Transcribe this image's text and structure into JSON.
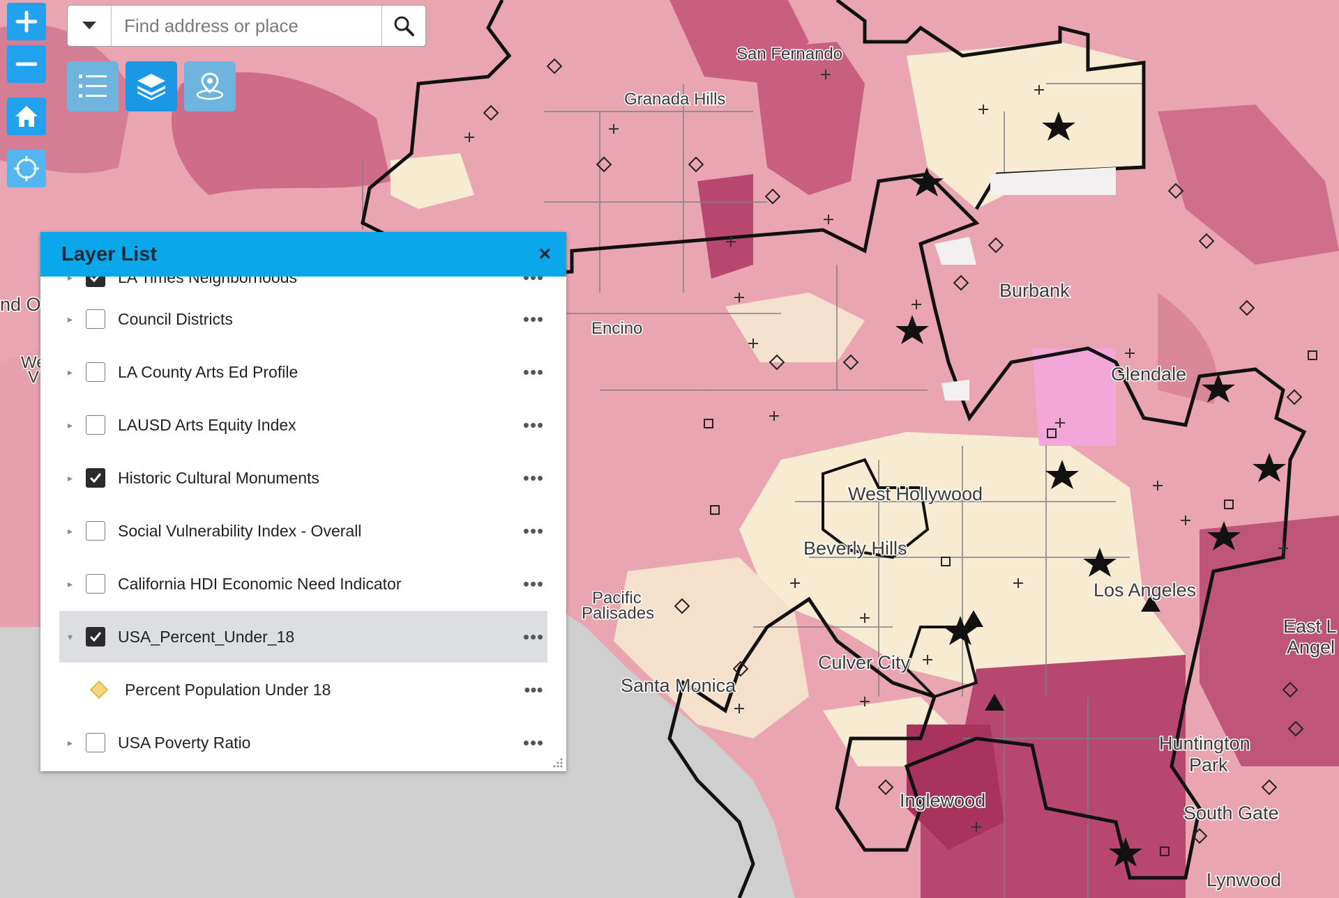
{
  "search": {
    "placeholder": "Find address or place"
  },
  "controls": {
    "zoom_in": "zoom-in",
    "zoom_out": "zoom-out",
    "home": "home",
    "locate": "locate"
  },
  "map": {
    "labels": {
      "san_fernando": "San Fernando",
      "granada_hills": "Granada Hills",
      "burbank": "Burbank",
      "encino": "Encino",
      "glendale": "Glendale",
      "west_hollywood": "West Hollywood",
      "beverly_hills": "Beverly Hills",
      "pacific": "Pacific",
      "palisades": "Palisades",
      "los_angeles": "Los Angeles",
      "culver_city": "Culver City",
      "santa_monica": "Santa Monica",
      "east": "East L",
      "angel": "Angel",
      "huntington": "Huntington",
      "park": "Park",
      "inglewood": "Inglewood",
      "south_gate": "South Gate",
      "lynwood": "Lynwood",
      "nd_o": "nd O",
      "we": "We",
      "v": "V"
    }
  },
  "layer_list": {
    "title": "Layer List",
    "close": "×",
    "more": "•••",
    "layers": [
      {
        "label": "LA Times Neighborhoods",
        "checked": true
      },
      {
        "label": "Council Districts",
        "checked": false
      },
      {
        "label": "LA County Arts Ed Profile",
        "checked": false
      },
      {
        "label": "LAUSD Arts Equity Index",
        "checked": false
      },
      {
        "label": "Historic Cultural Monuments",
        "checked": true
      },
      {
        "label": "Social Vulnerability Index - Overall",
        "checked": false
      },
      {
        "label": "California HDI Economic Need Indicator",
        "checked": false
      },
      {
        "label": "USA_Percent_Under_18",
        "checked": true,
        "expanded": true
      },
      {
        "label": "USA Poverty Ratio",
        "checked": false
      }
    ],
    "legend": {
      "label": "Percent Population Under 18",
      "color": "#f7d774"
    }
  },
  "colors": {
    "accent": "#0aa7ea",
    "control_blue": "#22a2ee",
    "ocean": "#cfcfcf",
    "pale": "#f7ecd2",
    "light_pink": "#f1c0c4",
    "mid_pink": "#e699a8",
    "dark_pink": "#c85e80",
    "deep": "#a8345e"
  }
}
